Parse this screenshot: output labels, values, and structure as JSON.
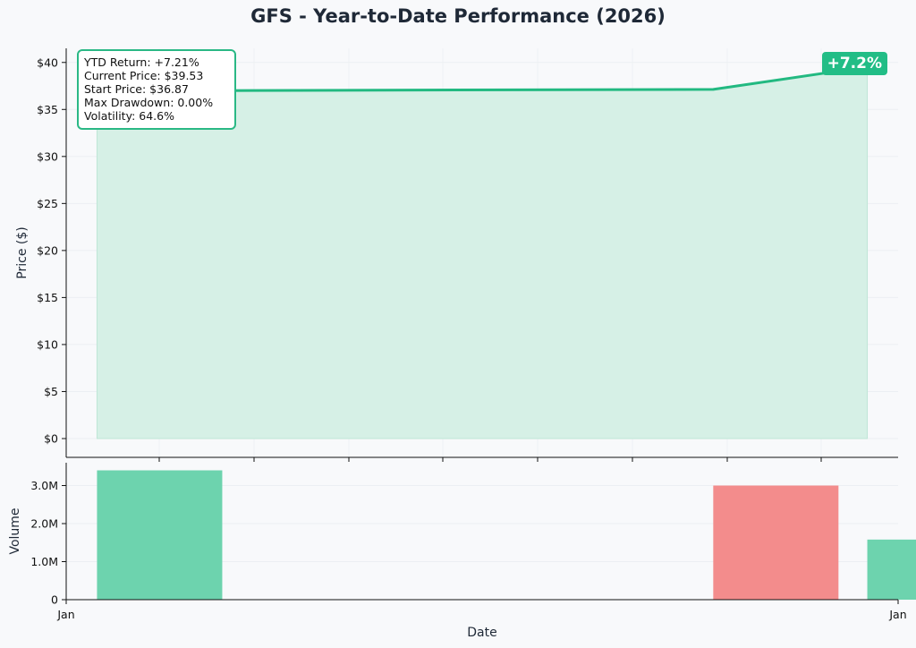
{
  "title": "GFS - Year-to-Date Performance (2026)",
  "stats": {
    "ytd_return": "YTD Return: +7.21%",
    "current_price": "Current Price: $39.53",
    "start_price": "Start Price: $36.87",
    "max_drawdown": "Max Drawdown: 0.00%",
    "volatility": "Volatility: 64.6%"
  },
  "badge": "+7.2%",
  "colors": {
    "line": "#22b981",
    "fill": "#d6f0e6",
    "up_bar": "#6dd3ae",
    "down_bar": "#f38c8c",
    "background": "#f8f9fb"
  },
  "chart_data": [
    {
      "type": "area",
      "name": "price",
      "ylabel": "Price ($)",
      "xlabel": "",
      "ylim": [
        -2,
        41.5
      ],
      "yticks": [
        0,
        5,
        10,
        15,
        20,
        25,
        30,
        35,
        40
      ],
      "ytick_labels": [
        "$0",
        "$5",
        "$10",
        "$15",
        "$20",
        "$25",
        "$30",
        "$35",
        "$40"
      ],
      "x": [
        "2026-01-01",
        "2026-01-02",
        "2026-01-05",
        "2026-01-06"
      ],
      "y": [
        36.87,
        37.02,
        37.13,
        39.53
      ],
      "grid": true
    },
    {
      "type": "bar",
      "name": "volume",
      "ylabel": "Volume",
      "xlabel": "Date",
      "ylim": [
        0,
        3600000
      ],
      "yticks": [
        0,
        1000000,
        2000000,
        3000000
      ],
      "ytick_labels": [
        "0",
        "1.0M",
        "2.0M",
        "3.0M"
      ],
      "x": [
        "2026-01-01",
        "2026-01-02",
        "2026-01-05",
        "2026-01-06"
      ],
      "values": [
        3400000,
        0,
        3000000,
        1580000
      ],
      "bar_colors": [
        "up",
        "up",
        "down",
        "up"
      ],
      "xtick_labels": [
        "Jan",
        "Jan"
      ],
      "grid": true
    }
  ]
}
